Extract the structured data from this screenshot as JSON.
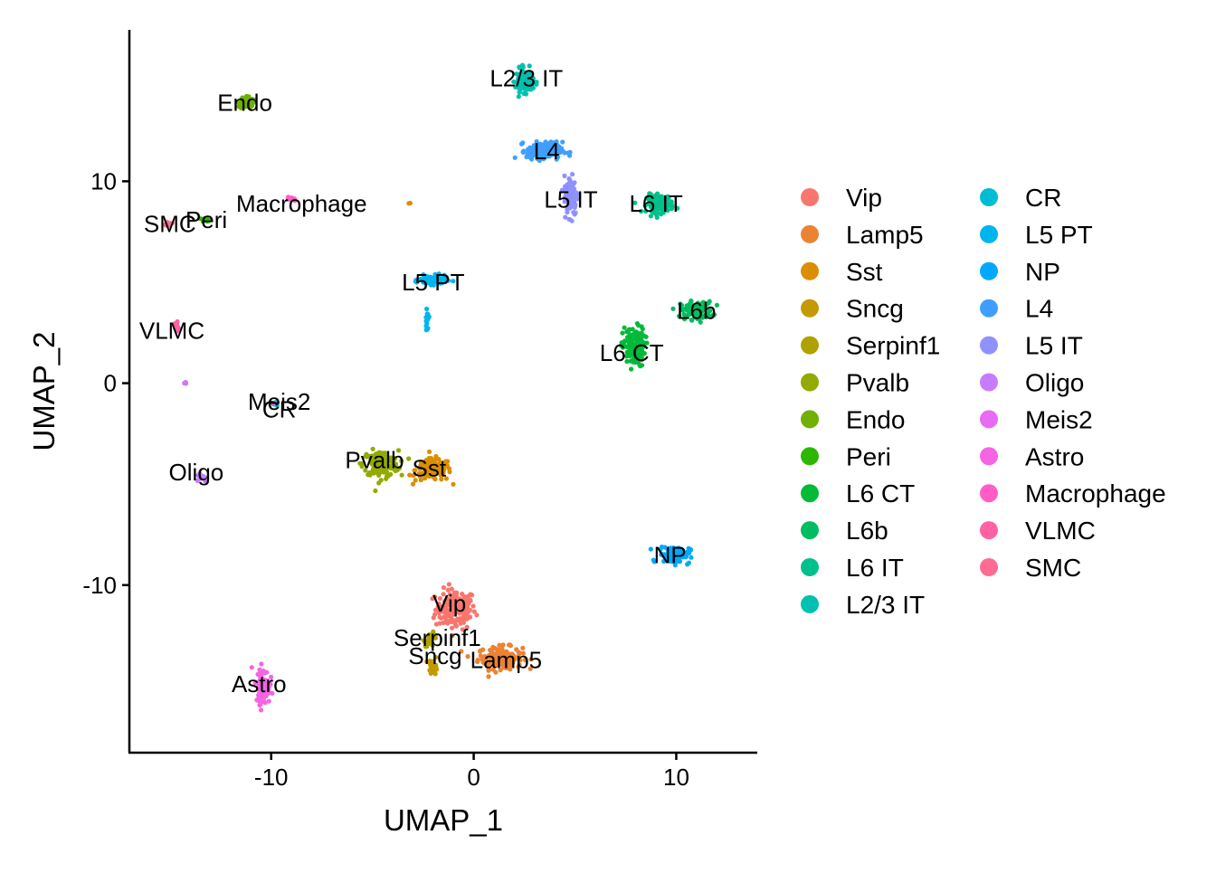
{
  "chart_data": {
    "type": "scatter",
    "xlabel": "UMAP_1",
    "ylabel": "UMAP_2",
    "xlim": [
      -17,
      14
    ],
    "ylim": [
      -18.3,
      17.5
    ],
    "x_ticks": [
      -10,
      0,
      10
    ],
    "y_ticks": [
      -10,
      0,
      10
    ],
    "grid": false,
    "legend_position": "right",
    "legend_columns": 2,
    "series": [
      {
        "name": "Vip",
        "color": "#F8766D",
        "label": "Vip",
        "label_pos": [
          -1.2,
          -11.0
        ],
        "clusters": [
          {
            "center": [
              -0.9,
              -11.2
            ],
            "spread": [
              0.9,
              0.9
            ],
            "n": 160
          }
        ]
      },
      {
        "name": "Lamp5",
        "color": "#EB8335",
        "label": "Lamp5",
        "label_pos": [
          1.6,
          -13.8
        ],
        "clusters": [
          {
            "center": [
              1.3,
              -13.6
            ],
            "spread": [
              1.0,
              0.5
            ],
            "n": 150
          }
        ]
      },
      {
        "name": "Sst",
        "color": "#DA8E00",
        "label": "Sst",
        "label_pos": [
          -2.2,
          -4.3
        ],
        "clusters": [
          {
            "center": [
              -2.0,
              -4.3
            ],
            "spread": [
              0.8,
              0.5
            ],
            "n": 140
          },
          {
            "center": [
              -3.2,
              8.9
            ],
            "spread": [
              0.05,
              0.05
            ],
            "n": 2
          }
        ]
      },
      {
        "name": "Sncg",
        "color": "#C59900",
        "label": "Sncg",
        "label_pos": [
          -1.9,
          -13.6
        ],
        "clusters": [
          {
            "center": [
              -2.0,
              -14.0
            ],
            "spread": [
              0.2,
              0.4
            ],
            "n": 30
          }
        ]
      },
      {
        "name": "Serpinf1",
        "color": "#AEA200",
        "label": "Serpinf1",
        "label_pos": [
          -1.8,
          -12.7
        ],
        "clusters": [
          {
            "center": [
              -2.1,
              -12.7
            ],
            "spread": [
              0.3,
              0.3
            ],
            "n": 25
          }
        ]
      },
      {
        "name": "Pvalb",
        "color": "#93AA00",
        "label": "Pvalb",
        "label_pos": [
          -4.9,
          -3.9
        ],
        "clusters": [
          {
            "center": [
              -4.6,
              -4.0
            ],
            "spread": [
              0.8,
              0.6
            ],
            "n": 160
          }
        ]
      },
      {
        "name": "Endo",
        "color": "#6FB000",
        "label": "Endo",
        "label_pos": [
          -11.3,
          13.8
        ],
        "clusters": [
          {
            "center": [
              -11.2,
              13.9
            ],
            "spread": [
              0.3,
              0.3
            ],
            "n": 50
          }
        ]
      },
      {
        "name": "Peri",
        "color": "#2EB700",
        "label": "Peri",
        "label_pos": [
          -13.2,
          8.0
        ],
        "clusters": [
          {
            "center": [
              -13.2,
              8.1
            ],
            "spread": [
              0.2,
              0.08
            ],
            "n": 15
          }
        ]
      },
      {
        "name": "L6 CT",
        "color": "#00BA38",
        "label": "L6 CT",
        "label_pos": [
          7.8,
          1.4
        ],
        "clusters": [
          {
            "center": [
              7.9,
              1.8
            ],
            "spread": [
              0.5,
              0.9
            ],
            "n": 140
          }
        ]
      },
      {
        "name": "L6b",
        "color": "#00BD5F",
        "label": "L6b",
        "label_pos": [
          11.0,
          3.5
        ],
        "clusters": [
          {
            "center": [
              11.0,
              3.6
            ],
            "spread": [
              0.7,
              0.4
            ],
            "n": 110
          }
        ]
      },
      {
        "name": "L6 IT",
        "color": "#00C08B",
        "label": "L6 IT",
        "label_pos": [
          9.0,
          8.8
        ],
        "clusters": [
          {
            "center": [
              9.2,
              8.9
            ],
            "spread": [
              0.6,
              0.4
            ],
            "n": 130
          }
        ]
      },
      {
        "name": "L2/3 IT",
        "color": "#00C0AF",
        "label": "L2/3 IT",
        "label_pos": [
          2.6,
          15.0
        ],
        "clusters": [
          {
            "center": [
              2.5,
              15.0
            ],
            "spread": [
              0.4,
              0.5
            ],
            "n": 150
          }
        ]
      },
      {
        "name": "CR",
        "color": "#00BCD4",
        "label": "CR",
        "label_pos": [
          -9.6,
          -1.4
        ],
        "clusters": [
          {
            "center": [
              -9.8,
              -1.0
            ],
            "spread": [
              0.15,
              0.08
            ],
            "n": 10
          }
        ]
      },
      {
        "name": "L5 PT",
        "color": "#00B4F0",
        "label": "L5 PT",
        "label_pos": [
          -2.0,
          4.9
        ],
        "clusters": [
          {
            "center": [
              -2.0,
              5.1
            ],
            "spread": [
              0.6,
              0.2
            ],
            "n": 110
          },
          {
            "center": [
              -2.3,
              3.1
            ],
            "spread": [
              0.08,
              0.4
            ],
            "n": 15
          }
        ]
      },
      {
        "name": "NP",
        "color": "#00A9FF",
        "label": "NP",
        "label_pos": [
          9.7,
          -8.6
        ],
        "clusters": [
          {
            "center": [
              9.9,
              -8.5
            ],
            "spread": [
              0.7,
              0.4
            ],
            "n": 100
          }
        ]
      },
      {
        "name": "L4",
        "color": "#3F9FFF",
        "label": "L4",
        "label_pos": [
          3.6,
          11.4
        ],
        "clusters": [
          {
            "center": [
              3.5,
              11.5
            ],
            "spread": [
              0.8,
              0.4
            ],
            "n": 160
          }
        ]
      },
      {
        "name": "L5 IT",
        "color": "#8F91FF",
        "label": "L5 IT",
        "label_pos": [
          4.8,
          9.0
        ],
        "clusters": [
          {
            "center": [
              4.8,
              9.3
            ],
            "spread": [
              0.3,
              0.9
            ],
            "n": 120
          }
        ]
      },
      {
        "name": "Oligo",
        "color": "#C77CFF",
        "label": "Oligo",
        "label_pos": [
          -13.7,
          -4.5
        ],
        "clusters": [
          {
            "center": [
              -13.5,
              -4.6
            ],
            "spread": [
              0.15,
              0.2
            ],
            "n": 10
          },
          {
            "center": [
              -14.2,
              0.0
            ],
            "spread": [
              0.1,
              0.05
            ],
            "n": 6
          }
        ]
      },
      {
        "name": "Meis2",
        "color": "#E76BF3",
        "label": "Meis2",
        "label_pos": [
          -9.6,
          -1.0
        ],
        "clusters": [
          {
            "center": [
              -9.9,
              -1.0
            ],
            "spread": [
              0.1,
              0.05
            ],
            "n": 4
          }
        ]
      },
      {
        "name": "Astro",
        "color": "#F564E3",
        "label": "Astro",
        "label_pos": [
          -10.6,
          -15.0
        ],
        "clusters": [
          {
            "center": [
              -10.4,
              -15.0
            ],
            "spread": [
              0.3,
              0.8
            ],
            "n": 110
          }
        ]
      },
      {
        "name": "Macrophage",
        "color": "#FF5DC5",
        "label": "Macrophage",
        "label_pos": [
          -8.5,
          8.8
        ],
        "clusters": [
          {
            "center": [
              -9.0,
              9.1
            ],
            "spread": [
              0.2,
              0.1
            ],
            "n": 8
          }
        ]
      },
      {
        "name": "VLMC",
        "color": "#FF61A3",
        "label": "VLMC",
        "label_pos": [
          -14.9,
          2.5
        ],
        "clusters": [
          {
            "center": [
              -14.7,
              2.8
            ],
            "spread": [
              0.2,
              0.3
            ],
            "n": 12
          }
        ]
      },
      {
        "name": "SMC",
        "color": "#FF6C91",
        "label": "SMC",
        "label_pos": [
          -15.0,
          7.8
        ],
        "clusters": [
          {
            "center": [
              -15.1,
              7.9
            ],
            "spread": [
              0.3,
              0.1
            ],
            "n": 15
          }
        ]
      }
    ]
  }
}
